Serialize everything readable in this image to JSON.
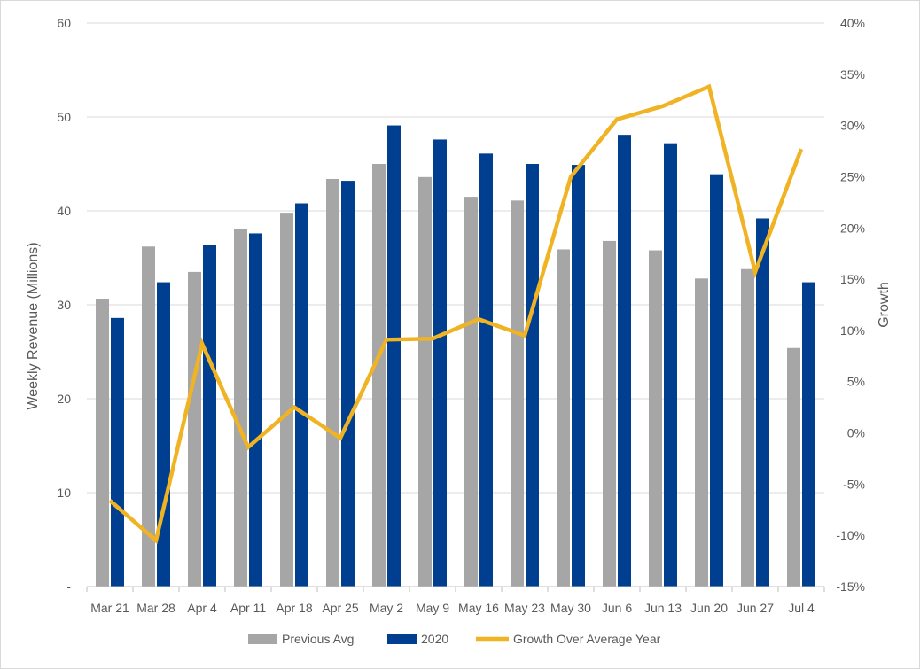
{
  "chart_data": {
    "type": "bar",
    "categories": [
      "Mar 21",
      "Mar 28",
      "Apr 4",
      "Apr 11",
      "Apr 18",
      "Apr 25",
      "May 2",
      "May 9",
      "May 16",
      "May 23",
      "May 30",
      "Jun 6",
      "Jun 13",
      "Jun 20",
      "Jun 27",
      "Jul 4"
    ],
    "series": [
      {
        "name": "Previous Avg",
        "type": "bar",
        "axis": "left",
        "color": "#a6a6a6",
        "values": [
          30.6,
          36.2,
          33.5,
          38.1,
          39.8,
          43.4,
          45.0,
          43.6,
          41.5,
          41.1,
          35.9,
          36.8,
          35.8,
          32.8,
          33.8,
          25.4
        ]
      },
      {
        "name": "2020",
        "type": "bar",
        "axis": "left",
        "color": "#003f8f",
        "values": [
          28.6,
          32.4,
          36.4,
          37.6,
          40.8,
          43.2,
          49.1,
          47.6,
          46.1,
          45.0,
          44.9,
          48.1,
          47.2,
          43.9,
          39.2,
          32.4
        ]
      },
      {
        "name": "Growth Over Average Year",
        "type": "line",
        "axis": "right",
        "color": "#f0b323",
        "values": [
          -6.6,
          -10.5,
          8.7,
          -1.4,
          2.5,
          -0.5,
          9.1,
          9.2,
          11.1,
          9.5,
          25.0,
          30.6,
          31.9,
          33.8,
          15.7,
          27.7
        ]
      }
    ],
    "title": "",
    "xlabel": "",
    "ylabel": "Weekly Revenue (Millions)",
    "y2label": "Growth",
    "ylim": [
      0,
      60
    ],
    "yticks": [
      "-",
      "10",
      "20",
      "30",
      "40",
      "50",
      "60"
    ],
    "y2lim": [
      -15,
      40
    ],
    "y2ticks": [
      "-15%",
      "-10%",
      "-5%",
      "0%",
      "5%",
      "10%",
      "15%",
      "20%",
      "25%",
      "30%",
      "35%",
      "40%"
    ],
    "grid": true,
    "legend": "bottom"
  }
}
